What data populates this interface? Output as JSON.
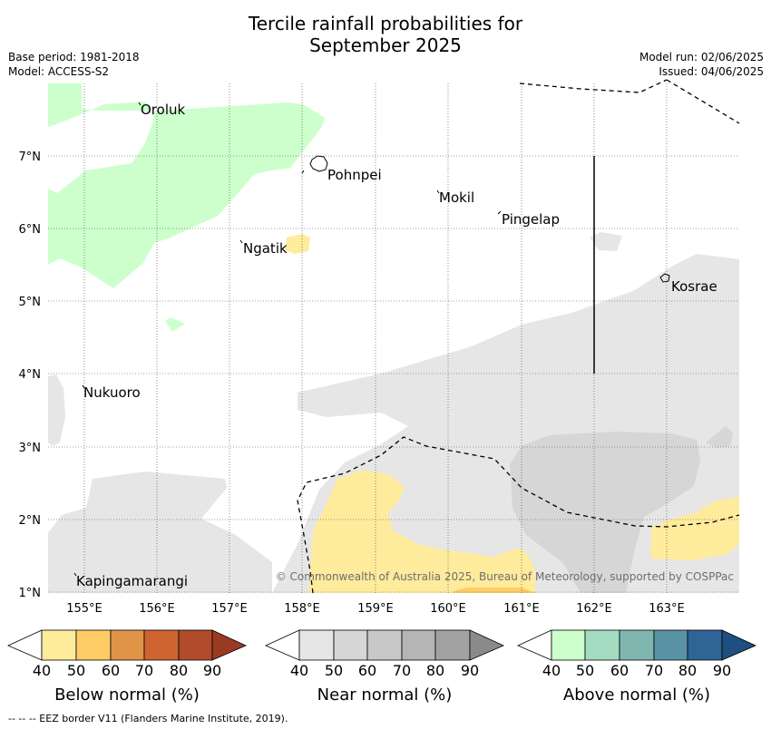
{
  "title": {
    "line1": "Tercile rainfall probabilities for",
    "line2": "September 2025"
  },
  "meta": {
    "base_period": "Base period: 1981-2018",
    "model": "Model: ACCESS-S2",
    "model_run": "Model run: 02/06/2025",
    "issued": "Issued: 04/06/2025"
  },
  "map": {
    "lon_labels": [
      "155°E",
      "156°E",
      "157°E",
      "158°E",
      "159°E",
      "160°E",
      "161°E",
      "162°E",
      "163°E"
    ],
    "lat_labels": [
      "7°N",
      "6°N",
      "5°N",
      "4°N",
      "3°N",
      "2°N",
      "1°N"
    ],
    "places": {
      "oroluk": "Oroluk",
      "pohnpei": "Pohnpei",
      "mokil": "Mokil",
      "pingelap": "Pingelap",
      "ngatik": "Ngatik",
      "kosrae": "Kosrae",
      "nukuoro": "Nukuoro",
      "kapingamarangi": "Kapingamarangi"
    },
    "copyright": "© Commonwealth of Australia 2025, Bureau of Meteorology, supported by COSPPac"
  },
  "legends": {
    "ticks": [
      "40",
      "50",
      "60",
      "70",
      "80",
      "90"
    ],
    "below": {
      "label": "Below normal (%)",
      "colors": [
        "#ffffff",
        "#ffeb9c",
        "#fecb64",
        "#e09448",
        "#cd6432",
        "#b14b2a",
        "#9a3a22"
      ]
    },
    "near": {
      "label": "Near normal (%)",
      "colors": [
        "#ffffff",
        "#e6e6e6",
        "#d6d6d6",
        "#c8c8c8",
        "#b5b5b5",
        "#a2a2a2",
        "#8a8a8a"
      ]
    },
    "above": {
      "label": "Above normal (%)",
      "colors": [
        "#ffffff",
        "#ccffcc",
        "#a3dcc0",
        "#7fb6b0",
        "#5a93a5",
        "#2f6596",
        "#1f4e80"
      ]
    }
  },
  "footer": "--  --  -- EEZ border V11 (Flanders Marine Institute, 2019)."
}
